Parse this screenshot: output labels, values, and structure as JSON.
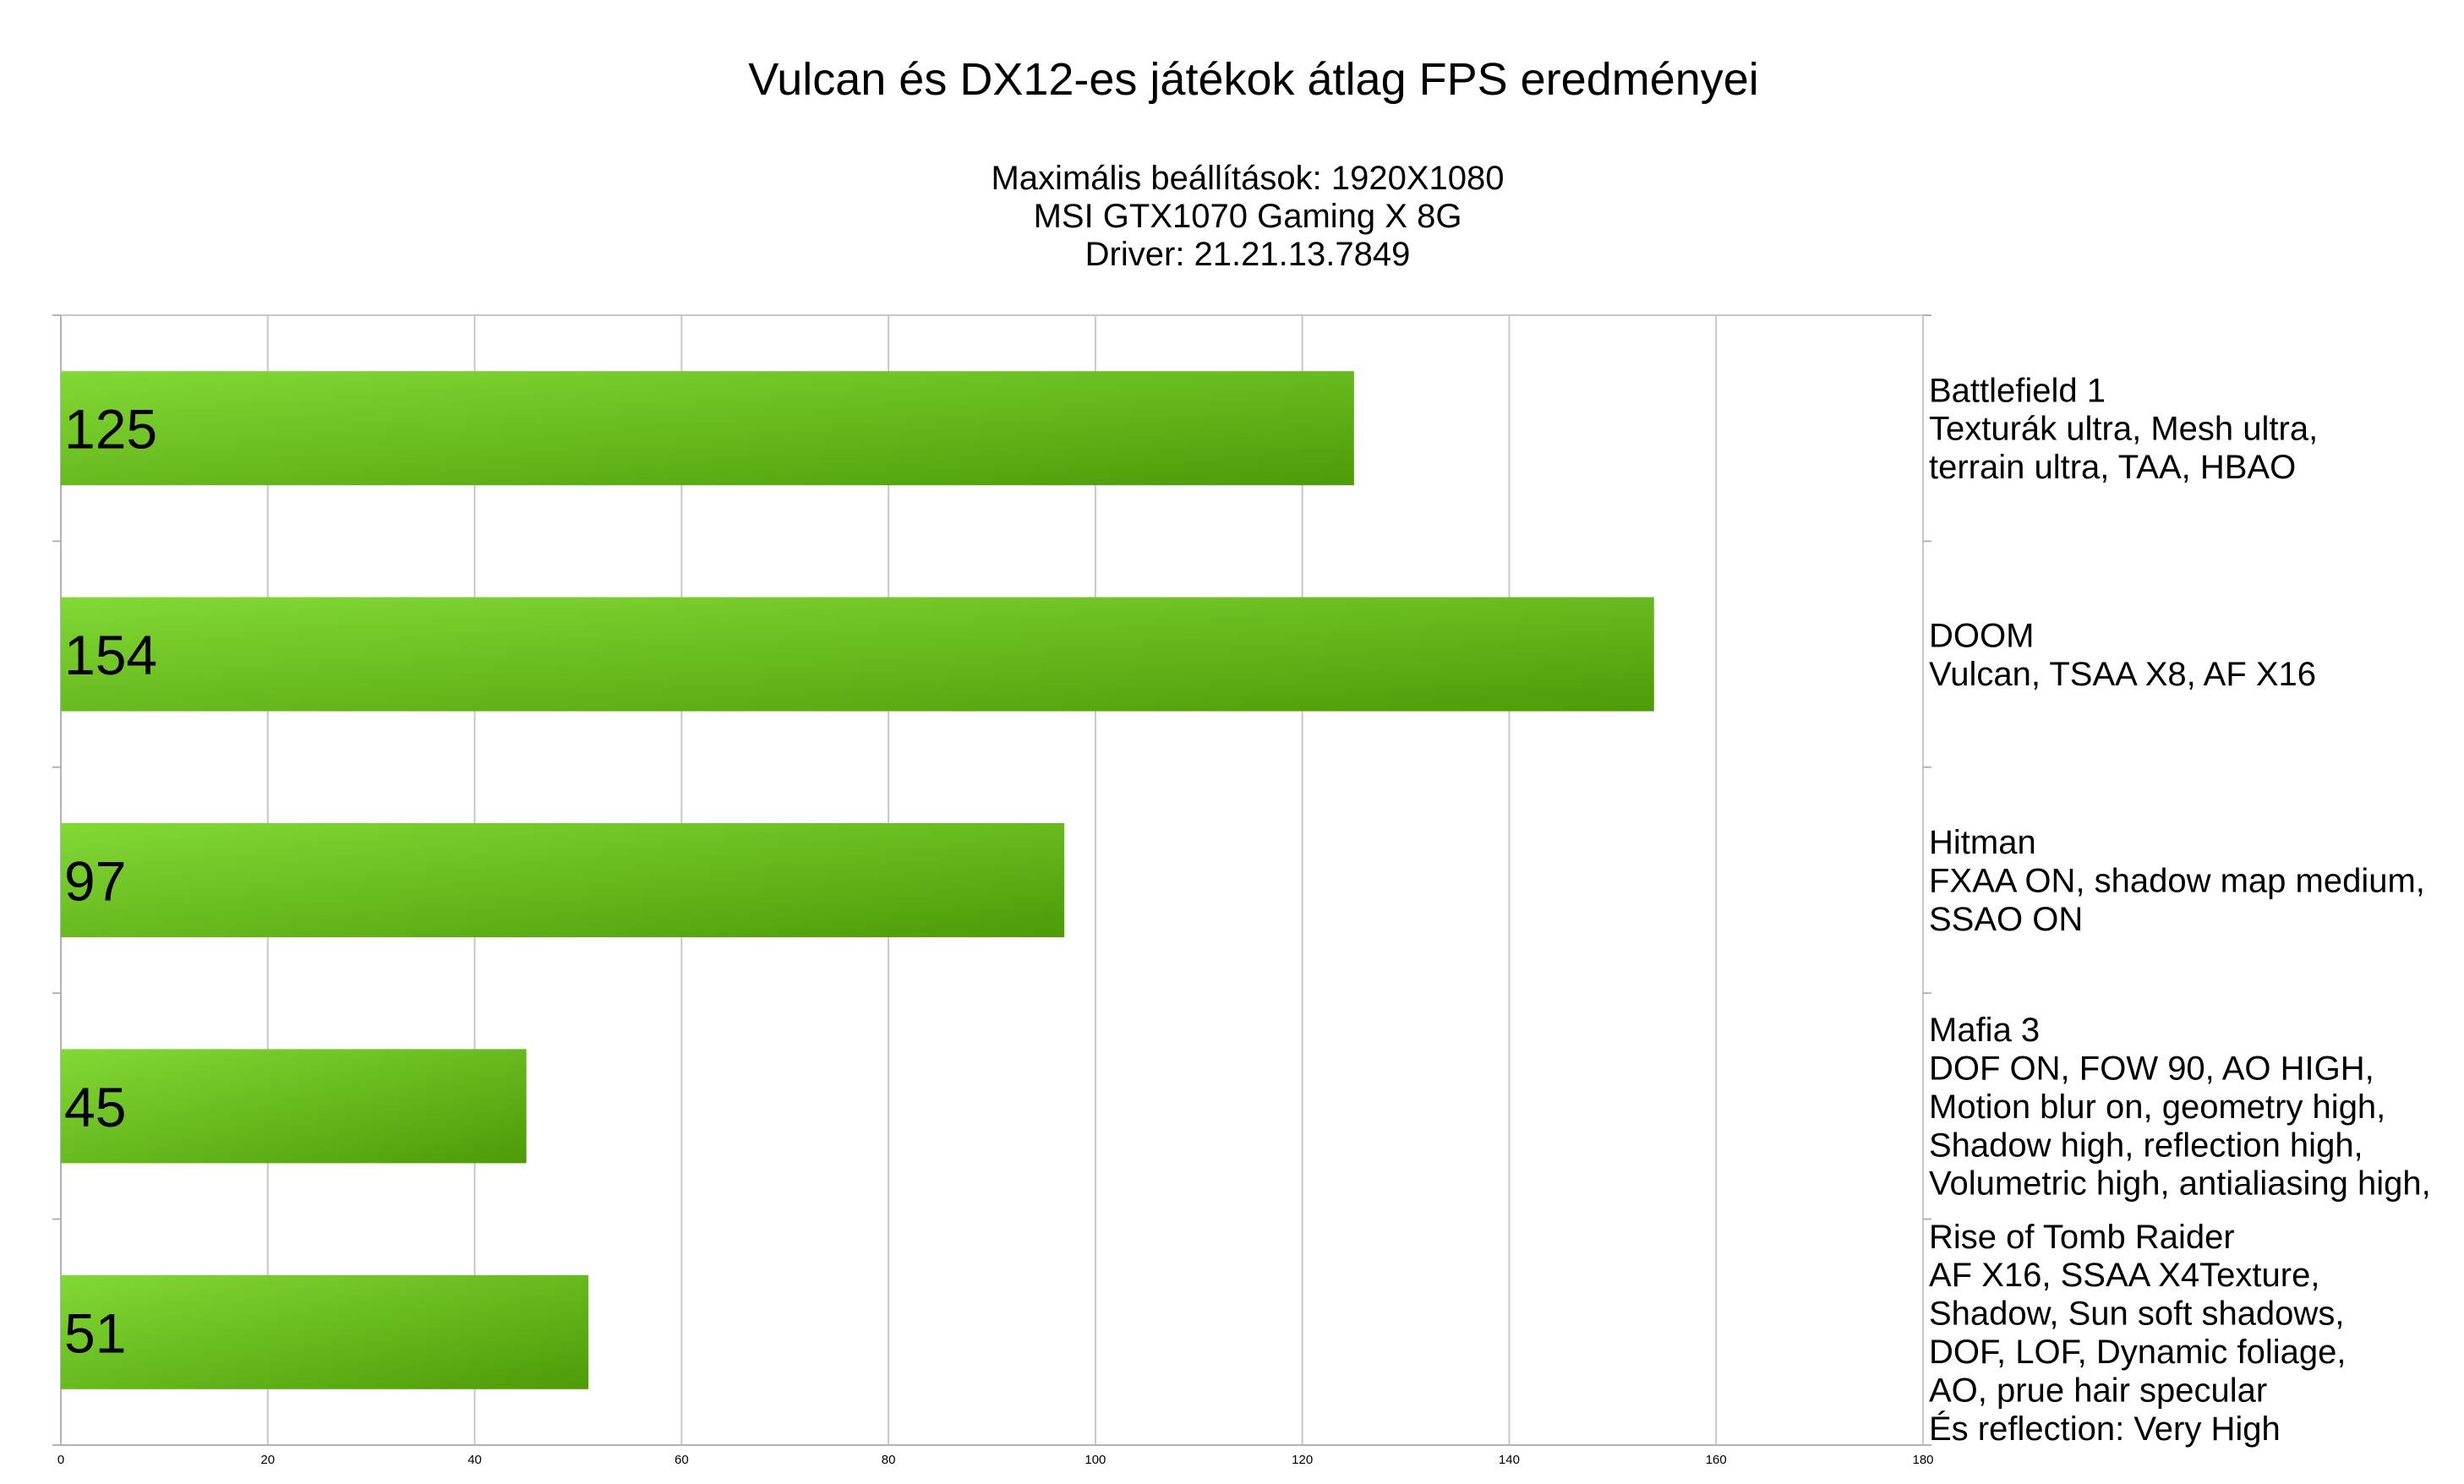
{
  "chart_data": {
    "type": "bar",
    "orientation": "horizontal",
    "title": "Vulcan és DX12-es játékok átlag FPS eredményei",
    "subtitle": [
      "Maximális beállítások: 1920X1080",
      "MSI GTX1070 Gaming X 8G",
      "Driver: 21.21.13.7849"
    ],
    "categories": [
      [
        "Battlefield 1",
        "Texturák ultra, Mesh ultra,",
        "terrain ultra, TAA, HBAO"
      ],
      [
        "DOOM",
        "Vulcan, TSAA X8, AF X16"
      ],
      [
        "Hitman",
        "FXAA ON, shadow map medium,",
        "SSAO ON"
      ],
      [
        "Mafia 3",
        "DOF ON, FOW 90, AO HIGH,",
        "Motion blur on, geometry high,",
        "Shadow high, reflection high,",
        "Volumetric high, antialiasing high,"
      ],
      [
        "Rise of Tomb Raider",
        "AF X16, SSAA X4Texture,",
        "Shadow, Sun soft shadows,",
        "DOF, LOF, Dynamic foliage,",
        "AO, prue hair specular",
        "És reflection: Very High"
      ]
    ],
    "values": [
      125,
      154,
      97,
      45,
      51
    ],
    "data_labels": [
      "125",
      "154",
      "97",
      "45",
      "51"
    ],
    "xlim": [
      0,
      180
    ],
    "x_ticks": [
      0,
      20,
      40,
      60,
      80,
      100,
      120,
      140,
      160,
      180
    ],
    "x_tick_labels": [
      "0",
      "20",
      "40",
      "60",
      "80",
      "100",
      "120",
      "140",
      "160",
      "180"
    ],
    "xlabel": "",
    "ylabel": "",
    "grid": true,
    "legend": "none",
    "colors": {
      "bar_light": "#82d935",
      "bar_dark": "#4d9b08",
      "grid": "#c8c8c8",
      "axis": "#b3b3b3"
    }
  }
}
